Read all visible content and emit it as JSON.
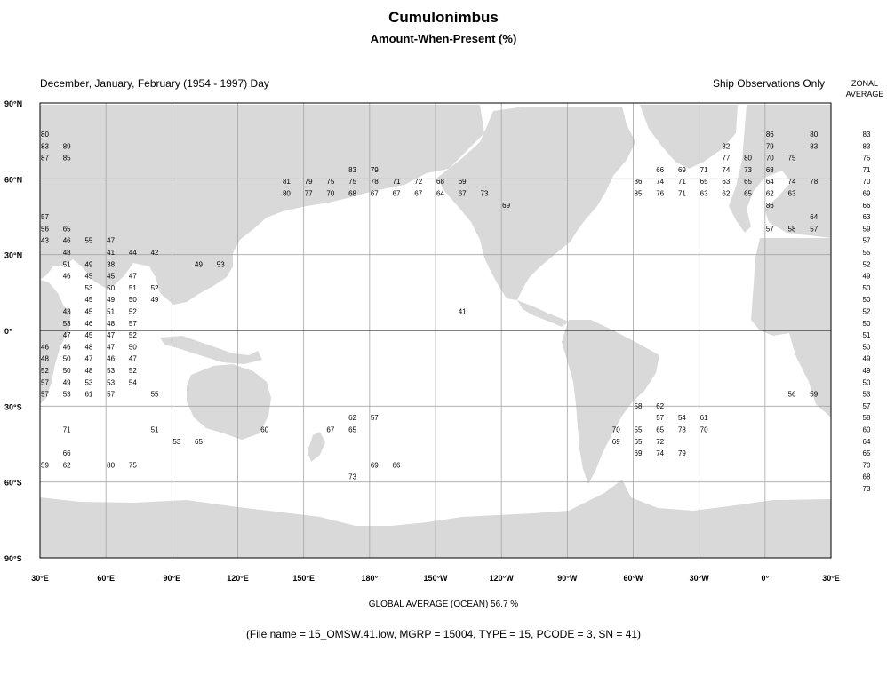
{
  "title": "Cumulonimbus",
  "subtitle": "Amount-When-Present (%)",
  "header_left": "December, January, February (1954 - 1997) Day",
  "header_right": "Ship Observations Only",
  "zonal_header": [
    "ZONAL",
    "AVERAGE"
  ],
  "lat_labels": [
    "90°N",
    "60°N",
    "30°N",
    "0°",
    "30°S",
    "60°S",
    "90°S"
  ],
  "lon_labels": [
    "30°E",
    "60°E",
    "90°E",
    "120°E",
    "150°E",
    "180°",
    "150°W",
    "120°W",
    "90°W",
    "60°W",
    "30°W",
    "0°",
    "30°E"
  ],
  "zonal_values": [
    83,
    83,
    75,
    71,
    70,
    69,
    66,
    63,
    59,
    57,
    55,
    52,
    49,
    50,
    50,
    52,
    50,
    51,
    50,
    49,
    49,
    50,
    53,
    57,
    58,
    60,
    64,
    65,
    70,
    68,
    73
  ],
  "global_average": "GLOBAL AVERAGE (OCEAN)   56.7 %",
  "file_info": "(File name = 15_OMSW.41.low, MGRP = 15004, TYPE = 15, PCODE = 3, SN = 41)",
  "colors": {
    "land": "#d9d9d9",
    "grid": "#a6a6a6",
    "frame": "#000000"
  },
  "map_cells": [
    [
      0,
      0,
      "80"
    ],
    [
      0,
      33,
      "86"
    ],
    [
      0,
      35,
      "80"
    ],
    [
      1,
      0,
      "83"
    ],
    [
      1,
      1,
      "89"
    ],
    [
      1,
      31,
      "82"
    ],
    [
      1,
      33,
      "79"
    ],
    [
      1,
      35,
      "83"
    ],
    [
      2,
      0,
      "87"
    ],
    [
      2,
      1,
      "85"
    ],
    [
      2,
      31,
      "77"
    ],
    [
      2,
      32,
      "80"
    ],
    [
      2,
      33,
      "70"
    ],
    [
      2,
      34,
      "75"
    ],
    [
      3,
      14,
      "83"
    ],
    [
      3,
      15,
      "79"
    ],
    [
      3,
      28,
      "66"
    ],
    [
      3,
      29,
      "69"
    ],
    [
      3,
      30,
      "71"
    ],
    [
      3,
      31,
      "74"
    ],
    [
      3,
      32,
      "73"
    ],
    [
      3,
      33,
      "68"
    ],
    [
      4,
      11,
      "81"
    ],
    [
      4,
      12,
      "79"
    ],
    [
      4,
      13,
      "75"
    ],
    [
      4,
      14,
      "75"
    ],
    [
      4,
      15,
      "78"
    ],
    [
      4,
      16,
      "71"
    ],
    [
      4,
      17,
      "72"
    ],
    [
      4,
      18,
      "68"
    ],
    [
      4,
      19,
      "69"
    ],
    [
      4,
      27,
      "86"
    ],
    [
      4,
      28,
      "74"
    ],
    [
      4,
      29,
      "71"
    ],
    [
      4,
      30,
      "65"
    ],
    [
      4,
      31,
      "63"
    ],
    [
      4,
      32,
      "65"
    ],
    [
      4,
      33,
      "64"
    ],
    [
      4,
      34,
      "74"
    ],
    [
      4,
      35,
      "78"
    ],
    [
      5,
      11,
      "80"
    ],
    [
      5,
      12,
      "77"
    ],
    [
      5,
      13,
      "70"
    ],
    [
      5,
      14,
      "68"
    ],
    [
      5,
      15,
      "67"
    ],
    [
      5,
      16,
      "67"
    ],
    [
      5,
      17,
      "67"
    ],
    [
      5,
      18,
      "64"
    ],
    [
      5,
      19,
      "67"
    ],
    [
      5,
      20,
      "73"
    ],
    [
      5,
      27,
      "85"
    ],
    [
      5,
      28,
      "76"
    ],
    [
      5,
      29,
      "71"
    ],
    [
      5,
      30,
      "63"
    ],
    [
      5,
      31,
      "62"
    ],
    [
      5,
      32,
      "65"
    ],
    [
      5,
      33,
      "62"
    ],
    [
      5,
      34,
      "63"
    ],
    [
      6,
      21,
      "69"
    ],
    [
      6,
      33,
      "86"
    ],
    [
      7,
      0,
      "57"
    ],
    [
      7,
      35,
      "64"
    ],
    [
      8,
      0,
      "56"
    ],
    [
      8,
      1,
      "65"
    ],
    [
      8,
      33,
      "57"
    ],
    [
      8,
      34,
      "58"
    ],
    [
      8,
      35,
      "57"
    ],
    [
      9,
      0,
      "43"
    ],
    [
      9,
      1,
      "46"
    ],
    [
      9,
      2,
      "55"
    ],
    [
      9,
      3,
      "47"
    ],
    [
      10,
      1,
      "48"
    ],
    [
      10,
      3,
      "41"
    ],
    [
      10,
      4,
      "44"
    ],
    [
      10,
      5,
      "42"
    ],
    [
      11,
      1,
      "51"
    ],
    [
      11,
      2,
      "49"
    ],
    [
      11,
      3,
      "38"
    ],
    [
      11,
      7,
      "49"
    ],
    [
      11,
      8,
      "53"
    ],
    [
      12,
      1,
      "46"
    ],
    [
      12,
      2,
      "45"
    ],
    [
      12,
      3,
      "45"
    ],
    [
      12,
      4,
      "47"
    ],
    [
      13,
      2,
      "53"
    ],
    [
      13,
      3,
      "50"
    ],
    [
      13,
      4,
      "51"
    ],
    [
      13,
      5,
      "52"
    ],
    [
      14,
      2,
      "45"
    ],
    [
      14,
      3,
      "49"
    ],
    [
      14,
      4,
      "50"
    ],
    [
      14,
      5,
      "49"
    ],
    [
      15,
      1,
      "43"
    ],
    [
      15,
      2,
      "45"
    ],
    [
      15,
      3,
      "51"
    ],
    [
      15,
      4,
      "52"
    ],
    [
      15,
      19,
      "41"
    ],
    [
      16,
      1,
      "53"
    ],
    [
      16,
      2,
      "46"
    ],
    [
      16,
      3,
      "48"
    ],
    [
      16,
      4,
      "57"
    ],
    [
      17,
      1,
      "47"
    ],
    [
      17,
      2,
      "45"
    ],
    [
      17,
      3,
      "47"
    ],
    [
      17,
      4,
      "52"
    ],
    [
      18,
      0,
      "46"
    ],
    [
      18,
      1,
      "46"
    ],
    [
      18,
      2,
      "48"
    ],
    [
      18,
      3,
      "47"
    ],
    [
      18,
      4,
      "50"
    ],
    [
      19,
      0,
      "48"
    ],
    [
      19,
      1,
      "50"
    ],
    [
      19,
      2,
      "47"
    ],
    [
      19,
      3,
      "46"
    ],
    [
      19,
      4,
      "47"
    ],
    [
      20,
      0,
      "52"
    ],
    [
      20,
      1,
      "50"
    ],
    [
      20,
      2,
      "48"
    ],
    [
      20,
      3,
      "53"
    ],
    [
      20,
      4,
      "52"
    ],
    [
      21,
      0,
      "57"
    ],
    [
      21,
      1,
      "49"
    ],
    [
      21,
      2,
      "53"
    ],
    [
      21,
      3,
      "53"
    ],
    [
      21,
      4,
      "54"
    ],
    [
      22,
      0,
      "57"
    ],
    [
      22,
      1,
      "53"
    ],
    [
      22,
      2,
      "61"
    ],
    [
      22,
      3,
      "57"
    ],
    [
      22,
      5,
      "55"
    ],
    [
      22,
      34,
      "56"
    ],
    [
      22,
      35,
      "59"
    ],
    [
      23,
      27,
      "58"
    ],
    [
      23,
      28,
      "62"
    ],
    [
      24,
      14,
      "62"
    ],
    [
      24,
      15,
      "57"
    ],
    [
      24,
      28,
      "57"
    ],
    [
      24,
      29,
      "54"
    ],
    [
      24,
      30,
      "61"
    ],
    [
      25,
      1,
      "71"
    ],
    [
      25,
      5,
      "51"
    ],
    [
      25,
      10,
      "60"
    ],
    [
      25,
      13,
      "67"
    ],
    [
      25,
      14,
      "65"
    ],
    [
      25,
      26,
      "70"
    ],
    [
      25,
      27,
      "55"
    ],
    [
      25,
      28,
      "65"
    ],
    [
      25,
      29,
      "78"
    ],
    [
      25,
      30,
      "70"
    ],
    [
      26,
      6,
      "53"
    ],
    [
      26,
      7,
      "65"
    ],
    [
      26,
      26,
      "69"
    ],
    [
      26,
      27,
      "65"
    ],
    [
      26,
      28,
      "72"
    ],
    [
      27,
      1,
      "66"
    ],
    [
      27,
      27,
      "69"
    ],
    [
      27,
      28,
      "74"
    ],
    [
      27,
      29,
      "79"
    ],
    [
      28,
      0,
      "59"
    ],
    [
      28,
      1,
      "62"
    ],
    [
      28,
      3,
      "80"
    ],
    [
      28,
      4,
      "75"
    ],
    [
      28,
      15,
      "69"
    ],
    [
      28,
      16,
      "66"
    ],
    [
      29,
      14,
      "73"
    ]
  ]
}
